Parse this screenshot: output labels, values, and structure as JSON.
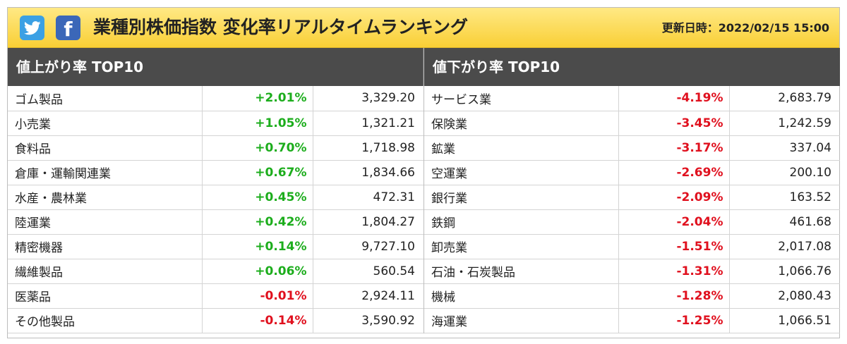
{
  "header": {
    "title": "業種別株価指数 変化率リアルタイムランキング",
    "updated_label": "更新日時：2022/02/15 15:00",
    "icons": [
      "twitter-icon",
      "facebook-icon"
    ],
    "facebook_glyph": "f"
  },
  "colors": {
    "header_bg": "#f9cf35",
    "panel_header_bg": "#4b4b4b",
    "up": "#1cad1c",
    "down": "#e0101e"
  },
  "gainers": {
    "title": "値上がり率 TOP10",
    "rows": [
      {
        "name": "ゴム製品",
        "rate": "+2.01%",
        "price": "3,329.20"
      },
      {
        "name": "小売業",
        "rate": "+1.05%",
        "price": "1,321.21"
      },
      {
        "name": "食料品",
        "rate": "+0.70%",
        "price": "1,718.98"
      },
      {
        "name": "倉庫・運輸関連業",
        "rate": "+0.67%",
        "price": "1,834.66"
      },
      {
        "name": "水産・農林業",
        "rate": "+0.45%",
        "price": "472.31"
      },
      {
        "name": "陸運業",
        "rate": "+0.42%",
        "price": "1,804.27"
      },
      {
        "name": "精密機器",
        "rate": "+0.14%",
        "price": "9,727.10"
      },
      {
        "name": "繊維製品",
        "rate": "+0.06%",
        "price": "560.54"
      },
      {
        "name": "医薬品",
        "rate": "-0.01%",
        "price": "2,924.11"
      },
      {
        "name": "その他製品",
        "rate": "-0.14%",
        "price": "3,590.92"
      }
    ]
  },
  "losers": {
    "title": "値下がり率 TOP10",
    "rows": [
      {
        "name": "サービス業",
        "rate": "-4.19%",
        "price": "2,683.79"
      },
      {
        "name": "保険業",
        "rate": "-3.45%",
        "price": "1,242.59"
      },
      {
        "name": "鉱業",
        "rate": "-3.17%",
        "price": "337.04"
      },
      {
        "name": "空運業",
        "rate": "-2.69%",
        "price": "200.10"
      },
      {
        "name": "銀行業",
        "rate": "-2.09%",
        "price": "163.52"
      },
      {
        "name": "鉄鋼",
        "rate": "-2.04%",
        "price": "461.68"
      },
      {
        "name": "卸売業",
        "rate": "-1.51%",
        "price": "2,017.08"
      },
      {
        "name": "石油・石炭製品",
        "rate": "-1.31%",
        "price": "1,066.76"
      },
      {
        "name": "機械",
        "rate": "-1.28%",
        "price": "2,080.43"
      },
      {
        "name": "海運業",
        "rate": "-1.25%",
        "price": "1,066.51"
      }
    ]
  }
}
